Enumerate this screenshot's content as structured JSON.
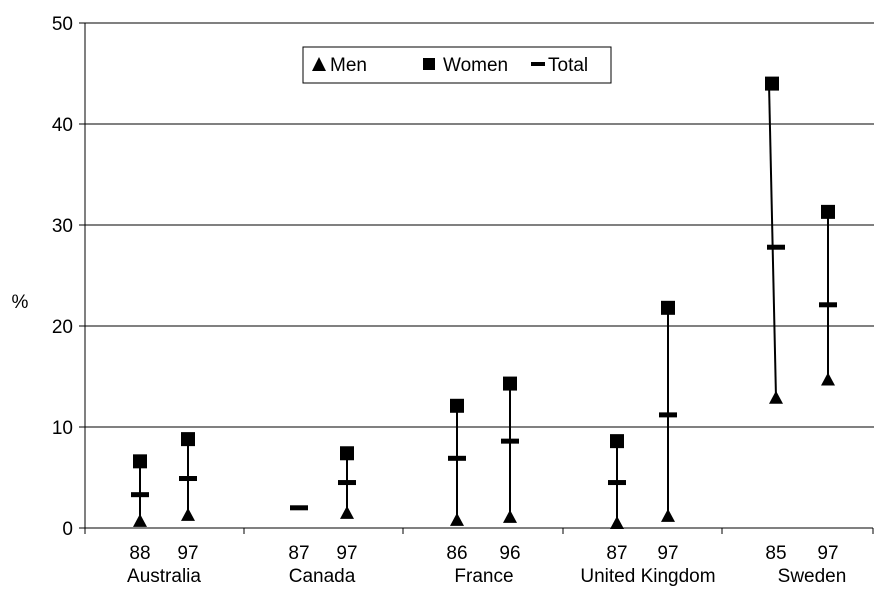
{
  "chart_data": {
    "type": "scatter",
    "title": "",
    "xlabel": "",
    "ylabel": "%",
    "ylim": [
      0,
      50
    ],
    "yticks": [
      0,
      10,
      20,
      30,
      40,
      50
    ],
    "grid": true,
    "legend_position": "top-center",
    "groups": [
      {
        "name": "Australia",
        "years": [
          "88",
          "97"
        ]
      },
      {
        "name": "Canada",
        "years": [
          "87",
          "97"
        ]
      },
      {
        "name": "France",
        "years": [
          "86",
          "96"
        ]
      },
      {
        "name": "United Kingdom",
        "years": [
          "87",
          "97"
        ]
      },
      {
        "name": "Sweden",
        "years": [
          "85",
          "97"
        ]
      }
    ],
    "series": [
      {
        "name": "Men",
        "marker": "triangle",
        "values": [
          0.7,
          1.3,
          null,
          1.5,
          0.8,
          1.1,
          0.5,
          1.2,
          12.9,
          14.7
        ]
      },
      {
        "name": "Women",
        "marker": "square",
        "values": [
          6.6,
          8.8,
          null,
          7.4,
          12.1,
          14.3,
          8.6,
          21.8,
          44.0,
          31.3
        ]
      },
      {
        "name": "Total",
        "marker": "dash",
        "values": [
          3.3,
          4.9,
          2.0,
          4.5,
          6.9,
          8.6,
          4.5,
          11.2,
          27.8,
          22.1
        ]
      }
    ]
  }
}
